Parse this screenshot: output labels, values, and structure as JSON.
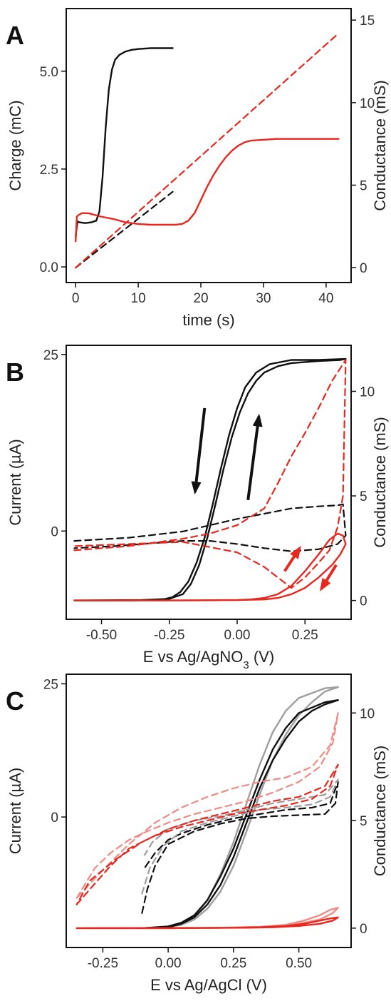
{
  "figure": {
    "panel_labels": [
      "A",
      "B",
      "C"
    ]
  },
  "chart_data": [
    {
      "panel": "A",
      "type": "line",
      "xlabel": "time (s)",
      "ylabel_left": "Charge (mC)",
      "ylabel_right": "Conductance (mS)",
      "xlim": [
        -1.5,
        44
      ],
      "ylim_left": [
        -0.4,
        6.6
      ],
      "ylim_right": [
        -0.9,
        15.7
      ],
      "xticks": [
        0,
        10,
        20,
        30,
        40
      ],
      "yticks_left": [
        "0.0",
        "2.5",
        "5.0"
      ],
      "yticks_right": [
        "0",
        "5",
        "10",
        "15"
      ],
      "colors": {
        "black": "#111111",
        "red": "#e8281f"
      },
      "series": [
        {
          "axis": "right",
          "color": "black",
          "style": "solid",
          "x": [
            0,
            0.3,
            0.6,
            1.5,
            2.5,
            3.3,
            3.8,
            4.3,
            4.8,
            5.3,
            5.8,
            6.3,
            7,
            8,
            9,
            10,
            12,
            14,
            15.5
          ],
          "y": [
            1.9,
            2.8,
            2.75,
            2.7,
            2.75,
            2.85,
            3.4,
            5.5,
            8.5,
            10.8,
            12,
            12.6,
            12.9,
            13.1,
            13.2,
            13.25,
            13.3,
            13.3,
            13.3
          ]
        },
        {
          "axis": "right",
          "color": "black",
          "style": "dashed",
          "x": [
            0,
            15.5
          ],
          "y": [
            0,
            4.6
          ]
        },
        {
          "axis": "right",
          "color": "red",
          "style": "solid",
          "x": [
            0,
            0.2,
            0.5,
            1,
            2,
            4,
            6,
            8,
            10,
            12,
            14,
            16,
            17,
            18,
            19,
            20,
            21,
            22,
            23,
            24,
            25,
            26,
            27,
            28,
            30,
            32,
            35,
            38,
            42
          ],
          "y": [
            1.6,
            3.1,
            3.2,
            3.3,
            3.3,
            3.1,
            2.95,
            2.75,
            2.65,
            2.6,
            2.6,
            2.6,
            2.65,
            2.85,
            3.3,
            4.1,
            4.9,
            5.6,
            6.2,
            6.7,
            7.1,
            7.4,
            7.6,
            7.7,
            7.75,
            7.8,
            7.8,
            7.8,
            7.8
          ]
        },
        {
          "axis": "right",
          "color": "red",
          "style": "dashed",
          "x": [
            0,
            42
          ],
          "y": [
            0,
            14.2
          ]
        }
      ]
    },
    {
      "panel": "B",
      "type": "line",
      "xlabel": "E vs Ag/AgNO3 (V)",
      "xlabel_sub": "3",
      "ylabel_left": "Current (µA)",
      "ylabel_right": "Conductance (mS)",
      "xlim": [
        -0.63,
        0.42
      ],
      "ylim_left": [
        -12.5,
        26.3
      ],
      "ylim_right": [
        -0.9,
        12.2
      ],
      "xticks": [
        "-0.50",
        "-0.25",
        "0.00",
        "0.25"
      ],
      "xtick_values": [
        -0.5,
        -0.25,
        0,
        0.25
      ],
      "yticks_left": [
        "0",
        "25"
      ],
      "yticks_right": [
        "0",
        "5",
        "10"
      ],
      "series": [
        {
          "axis": "right",
          "color": "black",
          "style": "solid",
          "x": [
            -0.6,
            -0.4,
            -0.3,
            -0.27,
            -0.24,
            -0.21,
            -0.18,
            -0.15,
            -0.12,
            -0.09,
            -0.06,
            -0.03,
            0,
            0.03,
            0.07,
            0.12,
            0.2,
            0.3,
            0.4,
            0.38,
            0.3,
            0.2,
            0.15,
            0.1,
            0.07,
            0.04,
            0.01,
            -0.02,
            -0.05,
            -0.08,
            -0.11,
            -0.14,
            -0.17,
            -0.2,
            -0.25,
            -0.35,
            -0.6
          ],
          "y": [
            0,
            0,
            0.02,
            0.06,
            0.15,
            0.4,
            0.9,
            1.8,
            3.0,
            4.6,
            6.3,
            7.9,
            9.2,
            10.2,
            10.9,
            11.3,
            11.5,
            11.5,
            11.55,
            11.5,
            11.45,
            11.35,
            11.2,
            10.9,
            10.5,
            9.9,
            9.0,
            7.8,
            6.3,
            4.6,
            3.0,
            1.7,
            0.8,
            0.3,
            0.08,
            0.02,
            0
          ]
        },
        {
          "axis": "right",
          "color": "black",
          "style": "dashed",
          "x": [
            -0.6,
            -0.4,
            -0.2,
            -0.1,
            0,
            0.1,
            0.2,
            0.3,
            0.37,
            0.39,
            0.4,
            0.37,
            0.3,
            0.2,
            0.1,
            0,
            -0.1,
            -0.2,
            -0.3,
            -0.45,
            -0.6
          ],
          "y": [
            2.85,
            3.0,
            3.3,
            3.6,
            3.9,
            4.15,
            4.4,
            4.5,
            4.55,
            4.6,
            3.1,
            2.7,
            2.45,
            2.35,
            2.5,
            2.7,
            2.85,
            2.85,
            2.75,
            2.6,
            2.5
          ]
        },
        {
          "axis": "right",
          "color": "red",
          "style": "dashed",
          "x": [
            -0.6,
            -0.4,
            -0.2,
            -0.1,
            0,
            0.1,
            0.15,
            0.2,
            0.25,
            0.3,
            0.35,
            0.4,
            0.39,
            0.37,
            0.34,
            0.3,
            0.25,
            0.2,
            0.15,
            0.1,
            0,
            -0.2,
            -0.4,
            -0.6
          ],
          "y": [
            2.4,
            2.6,
            2.95,
            3.2,
            3.6,
            4.4,
            5.6,
            6.9,
            8.0,
            9.2,
            10.5,
            11.5,
            5,
            3.5,
            2.4,
            1.8,
            1.1,
            0.6,
            1.1,
            1.6,
            2.3,
            2.8,
            2.7,
            2.6
          ]
        },
        {
          "axis": "right",
          "color": "red",
          "style": "solid",
          "x": [
            -0.6,
            -0.2,
            0,
            0.05,
            0.1,
            0.15,
            0.2,
            0.25,
            0.3,
            0.34,
            0.37,
            0.39,
            0.4,
            0.38,
            0.35,
            0.3,
            0.25,
            0.2,
            0.15,
            0.1,
            0,
            -0.3,
            -0.6
          ],
          "y": [
            0,
            0,
            0.02,
            0.05,
            0.12,
            0.3,
            0.7,
            1.4,
            2.2,
            2.9,
            3.2,
            3.1,
            2.7,
            2.2,
            1.7,
            1.1,
            0.6,
            0.3,
            0.12,
            0.05,
            0.02,
            0,
            0
          ]
        }
      ]
    },
    {
      "panel": "C",
      "type": "line",
      "xlabel": "E vs Ag/AgCl (V)",
      "ylabel_left": "Current (µA)",
      "ylabel_right": "Conductance (mS)",
      "xlim": [
        -0.39,
        0.7
      ],
      "ylim_left": [
        -24.5,
        26.8
      ],
      "ylim_right": [
        -0.9,
        11.8
      ],
      "xticks": [
        "-0.25",
        "0.00",
        "0.25",
        "0.50"
      ],
      "xtick_values": [
        -0.25,
        0,
        0.25,
        0.5
      ],
      "yticks_left": [
        "0",
        "25"
      ],
      "yticks_right": [
        "0",
        "5",
        "10"
      ],
      "series": [
        {
          "axis": "right",
          "color": "gray",
          "style": "solid",
          "x": [
            -0.1,
            0,
            0.05,
            0.1,
            0.15,
            0.2,
            0.25,
            0.3,
            0.35,
            0.4,
            0.45,
            0.5,
            0.55,
            0.6,
            0.65,
            0.6,
            0.5,
            0.45,
            0.4,
            0.35,
            0.3,
            0.25,
            0.2,
            0.15,
            0.1,
            0.05,
            0,
            -0.1
          ],
          "y": [
            0,
            0.05,
            0.15,
            0.4,
            0.9,
            1.7,
            2.9,
            4.5,
            6.2,
            7.8,
            9.0,
            9.9,
            10.5,
            11,
            11.2,
            11.15,
            10.7,
            10.1,
            9.1,
            7.6,
            5.8,
            4.0,
            2.5,
            1.3,
            0.55,
            0.2,
            0.06,
            0
          ]
        },
        {
          "axis": "right",
          "color": "black",
          "style": "solid",
          "x": [
            -0.1,
            0,
            0.05,
            0.1,
            0.15,
            0.2,
            0.25,
            0.3,
            0.35,
            0.4,
            0.45,
            0.5,
            0.55,
            0.6,
            0.65,
            0.6,
            0.5,
            0.45,
            0.4,
            0.35,
            0.3,
            0.25,
            0.2,
            0.15,
            0.1,
            0.05,
            0,
            -0.1
          ],
          "y": [
            0,
            0.05,
            0.2,
            0.5,
            1.1,
            2.0,
            3.3,
            4.9,
            6.5,
            7.8,
            8.8,
            9.6,
            10.1,
            10.4,
            10.6,
            10.5,
            10.0,
            9.3,
            8.3,
            6.9,
            5.3,
            3.7,
            2.4,
            1.3,
            0.6,
            0.25,
            0.08,
            0
          ]
        },
        {
          "axis": "right",
          "color": "black",
          "style": "dashed",
          "x": [
            -0.1,
            -0.08,
            -0.05,
            0,
            0.1,
            0.2,
            0.3,
            0.4,
            0.5,
            0.6,
            0.64,
            0.65,
            0.62,
            0.55,
            0.45,
            0.35,
            0.25,
            0.15,
            0.05,
            0,
            -0.05,
            -0.09
          ],
          "y": [
            0.7,
            1.8,
            2.9,
            3.9,
            4.5,
            4.85,
            5.1,
            5.2,
            5.25,
            5.3,
            5.8,
            6.8,
            5.8,
            5.6,
            5.5,
            5.3,
            5.1,
            4.8,
            4.4,
            4.1,
            3.5,
            2.8
          ]
        },
        {
          "axis": "right",
          "color": "gray",
          "style": "dashed",
          "x": [
            -0.1,
            -0.07,
            -0.02,
            0.05,
            0.15,
            0.25,
            0.35,
            0.45,
            0.55,
            0.62,
            0.65,
            0.6,
            0.5,
            0.4,
            0.3,
            0.2,
            0.1,
            0,
            -0.06,
            -0.09
          ],
          "y": [
            1.6,
            2.8,
            3.8,
            4.5,
            4.9,
            5.2,
            5.5,
            5.6,
            5.75,
            6.1,
            6.9,
            6.2,
            6.0,
            5.8,
            5.5,
            5.2,
            5.0,
            4.6,
            4.0,
            3.4
          ]
        },
        {
          "axis": "right",
          "color": "light-red",
          "style": "dashed",
          "x": [
            -0.35,
            -0.32,
            -0.28,
            -0.22,
            -0.15,
            -0.08,
            0,
            0.1,
            0.2,
            0.3,
            0.4,
            0.5,
            0.58,
            0.63,
            0.65,
            0.62,
            0.55,
            0.45,
            0.35,
            0.25,
            0.15,
            0.05,
            -0.05,
            -0.15,
            -0.25,
            -0.32,
            -0.35
          ],
          "y": [
            1.4,
            2.0,
            2.8,
            3.5,
            4.1,
            4.5,
            4.9,
            5.3,
            5.6,
            5.9,
            6.3,
            6.8,
            7.5,
            8.6,
            10.0,
            8.5,
            7.5,
            7.0,
            6.8,
            6.5,
            6.1,
            5.6,
            4.9,
            3.9,
            2.7,
            1.8,
            1.4
          ]
        },
        {
          "axis": "right",
          "color": "red",
          "style": "dashed",
          "x": [
            -0.35,
            -0.3,
            -0.22,
            -0.15,
            -0.05,
            0.05,
            0.15,
            0.25,
            0.35,
            0.45,
            0.55,
            0.62,
            0.65,
            0.6,
            0.5,
            0.4,
            0.3,
            0.2,
            0.1,
            0,
            -0.1,
            -0.2,
            -0.3,
            -0.35
          ],
          "y": [
            1.1,
            1.8,
            2.9,
            3.7,
            4.3,
            4.7,
            5.0,
            5.3,
            5.5,
            5.7,
            6.0,
            6.6,
            7.6,
            6.6,
            6.1,
            5.9,
            5.6,
            5.3,
            5.0,
            4.6,
            4.0,
            3.2,
            2.2,
            1.1
          ]
        },
        {
          "axis": "right",
          "color": "light-red",
          "style": "solid",
          "x": [
            -0.35,
            0,
            0.2,
            0.35,
            0.45,
            0.52,
            0.58,
            0.62,
            0.65,
            0.63,
            0.58,
            0.5,
            0.4,
            0.3,
            0.1,
            -0.35
          ],
          "y": [
            0,
            0,
            0.02,
            0.06,
            0.15,
            0.35,
            0.6,
            0.85,
            0.95,
            0.7,
            0.4,
            0.2,
            0.08,
            0.03,
            0.01,
            0
          ]
        },
        {
          "axis": "right",
          "color": "red",
          "style": "solid",
          "x": [
            -0.35,
            0,
            0.2,
            0.35,
            0.45,
            0.52,
            0.58,
            0.62,
            0.65,
            0.63,
            0.58,
            0.5,
            0.4,
            0.3,
            0.1,
            -0.35
          ],
          "y": [
            0,
            0,
            0.01,
            0.04,
            0.1,
            0.2,
            0.35,
            0.45,
            0.5,
            0.35,
            0.2,
            0.1,
            0.04,
            0.02,
            0.01,
            0
          ]
        }
      ]
    }
  ]
}
